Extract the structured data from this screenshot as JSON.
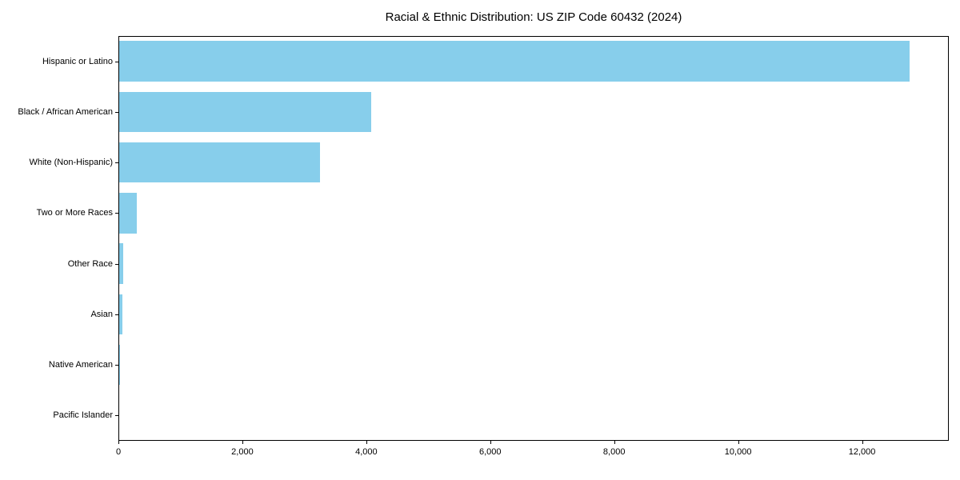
{
  "chart_data": {
    "type": "bar",
    "orientation": "horizontal",
    "title": "Racial & Ethnic Distribution: US ZIP Code 60432 (2024)",
    "categories": [
      "Hispanic or Latino",
      "Black / African American",
      "White (Non-Hispanic)",
      "Two or More Races",
      "Other Race",
      "Asian",
      "Native American",
      "Pacific Islander"
    ],
    "values": [
      12760,
      4070,
      3240,
      290,
      65,
      50,
      12,
      0
    ],
    "xlabel": "",
    "ylabel": "",
    "xlim": [
      0,
      13400
    ],
    "x_ticks": [
      0,
      2000,
      4000,
      6000,
      8000,
      10000,
      12000
    ],
    "x_tick_labels": [
      "0",
      "2,000",
      "4,000",
      "6,000",
      "8,000",
      "10,000",
      "12,000"
    ],
    "bar_color": "#87CEEB",
    "axis_color": "#000000",
    "grid": false,
    "legend": "none"
  }
}
